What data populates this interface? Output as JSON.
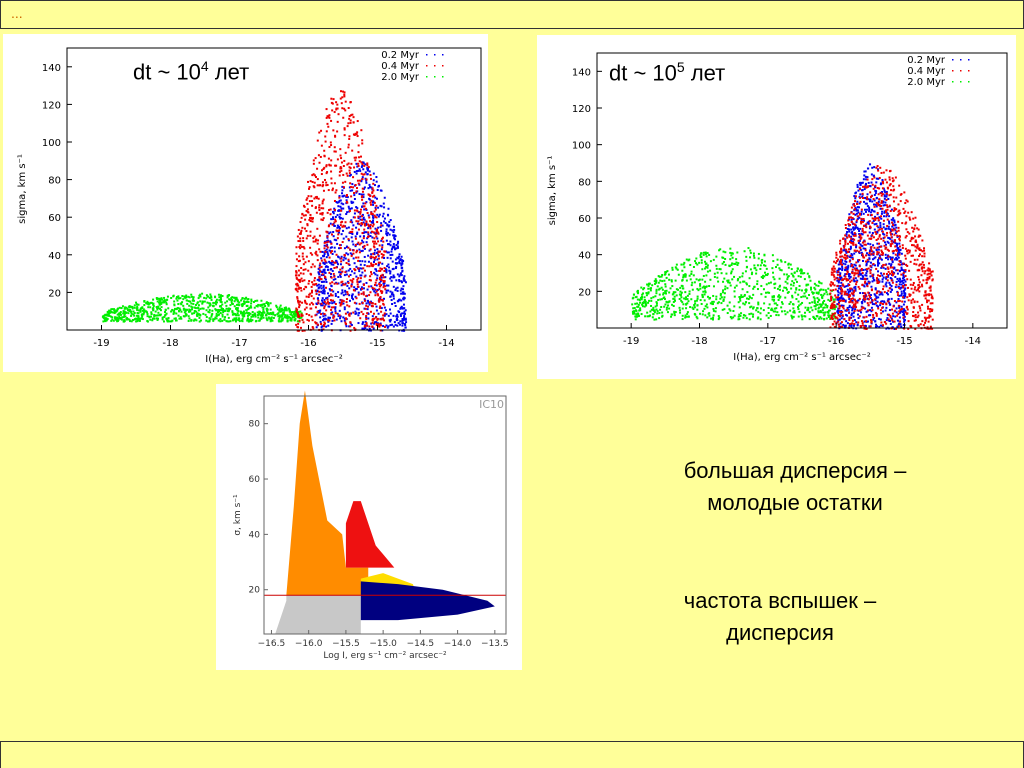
{
  "header": {
    "dots": "..."
  },
  "captions": {
    "line1a": "большая дисперсия –",
    "line1b": "молодые остатки",
    "line2a": "частота вспышек –",
    "line2b": "дисперсия"
  },
  "chart_data": [
    {
      "type": "scatter",
      "title_base": "dt ~ 10",
      "title_exp": "4",
      "title_unit": "лет",
      "xlabel": "I(Ha), erg cm⁻² s⁻¹ arcsec⁻²",
      "ylabel": "sigma, km s⁻¹",
      "xlim": [
        -19.5,
        -13.5
      ],
      "ylim": [
        0,
        150
      ],
      "xticks": [
        "-19",
        "-18",
        "-17",
        "-16",
        "-15",
        "-14"
      ],
      "yticks": [
        "20",
        "40",
        "60",
        "80",
        "100",
        "120",
        "140"
      ],
      "legend_position": "top-right",
      "series": [
        {
          "name": "0.2 Myr",
          "color": "#0000ee"
        },
        {
          "name": "0.4 Myr",
          "color": "#ee0000"
        },
        {
          "name": "2.0 Myr",
          "color": "#00ee00"
        }
      ],
      "clusters": [
        {
          "series": 2,
          "x": [
            -19.0,
            -16.1
          ],
          "y": [
            5,
            20
          ]
        },
        {
          "series": 0,
          "x": [
            -15.9,
            -14.6
          ],
          "y": [
            0,
            90
          ]
        },
        {
          "series": 1,
          "x": [
            -16.2,
            -14.9
          ],
          "y": [
            0,
            128
          ]
        }
      ]
    },
    {
      "type": "scatter",
      "title_base": "dt ~ 10",
      "title_exp": "5",
      "title_unit": "лет",
      "xlabel": "I(Ha), erg cm⁻² s⁻¹ arcsec⁻²",
      "ylabel": "sigma, km s⁻¹",
      "xlim": [
        -19.5,
        -13.5
      ],
      "ylim": [
        0,
        150
      ],
      "xticks": [
        "-19",
        "-18",
        "-17",
        "-16",
        "-15",
        "-14"
      ],
      "yticks": [
        "20",
        "40",
        "60",
        "80",
        "100",
        "120",
        "140"
      ],
      "legend_position": "top-right",
      "series": [
        {
          "name": "0.2 Myr",
          "color": "#0000ee"
        },
        {
          "name": "0.4 Myr",
          "color": "#ee0000"
        },
        {
          "name": "2.0 Myr",
          "color": "#00ee00"
        }
      ],
      "clusters": [
        {
          "series": 2,
          "x": [
            -19.0,
            -16.0
          ],
          "y": [
            5,
            45
          ]
        },
        {
          "series": 0,
          "x": [
            -16.0,
            -15.0
          ],
          "y": [
            0,
            90
          ]
        },
        {
          "series": 1,
          "x": [
            -16.1,
            -14.6
          ],
          "y": [
            0,
            90
          ]
        }
      ]
    },
    {
      "type": "scatter",
      "label": "IC10",
      "xlabel": "Log I, erg s⁻¹ cm⁻² arcsec⁻²",
      "ylabel": "σ, km s⁻¹",
      "xlim": [
        -16.6,
        -13.35
      ],
      "ylim": [
        4,
        90
      ],
      "xticks": [
        "-16.5",
        "-16.0",
        "-15.5",
        "-15.0",
        "-14.5",
        "-14.0",
        "-13.5"
      ],
      "yticks": [
        "20",
        "40",
        "60",
        "80"
      ],
      "threshold_sigma": 18,
      "regions": [
        {
          "name": "gray",
          "color": "#c8c8c8"
        },
        {
          "name": "orange",
          "color": "#ff8c00"
        },
        {
          "name": "red",
          "color": "#ee1111"
        },
        {
          "name": "yellow",
          "color": "#ffdd00"
        },
        {
          "name": "navy",
          "color": "#000080"
        }
      ]
    }
  ]
}
